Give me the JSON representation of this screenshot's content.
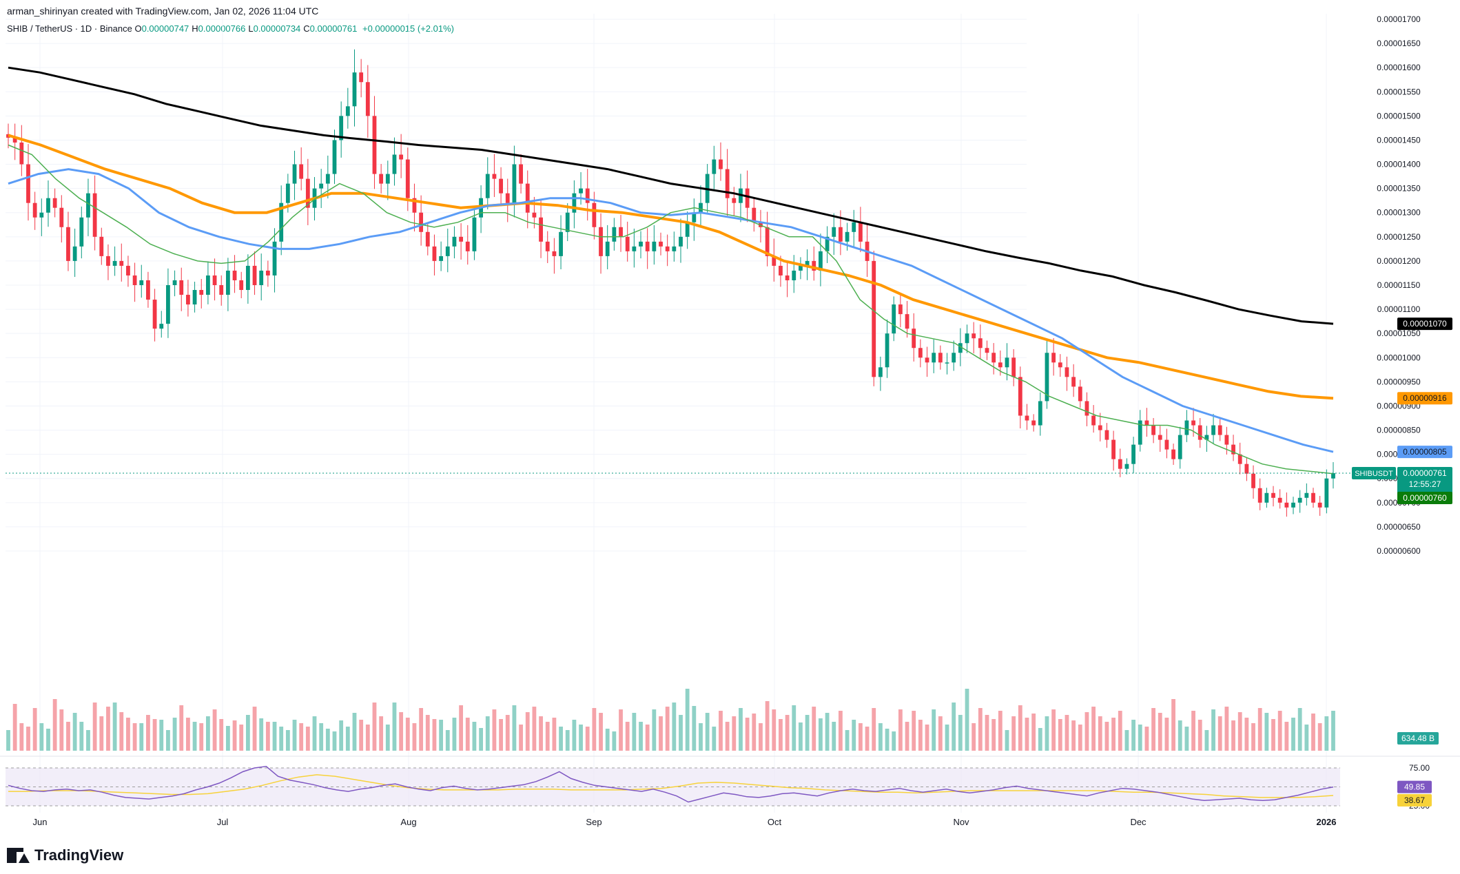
{
  "header": {
    "creator_note": "arman_shirinyan created with TradingView.com, Jan 02, 2026 11:04 UTC",
    "symbol": "SHIB / TetherUS · 1D · Binance",
    "ohlc": [
      {
        "k": "O",
        "v": "0.00000747"
      },
      {
        "k": "H",
        "v": "0.00000766"
      },
      {
        "k": "L",
        "v": "0.00000734"
      },
      {
        "k": "C",
        "v": "0.00000761"
      }
    ],
    "change": "+0.00000015 (+2.01%)"
  },
  "footer": {
    "brand": "TradingView",
    "logo_icon": "tradingview-logo-icon"
  },
  "colors": {
    "up": "#089981",
    "down": "#f23645",
    "vol_up": "#8fd1c6",
    "vol_down": "#f5a3a9",
    "ma200": "#000000",
    "ma100": "#ff9800",
    "ma50": "#5b9cf6",
    "ma20": "#4caf50",
    "rsi": "#7e57c2",
    "rsi_ma": "#f7d23a"
  },
  "chart_data": {
    "type": "candlestick",
    "y_ticks": [
      "0.00001700",
      "0.00001650",
      "0.00001600",
      "0.00001550",
      "0.00001500",
      "0.00001450",
      "0.00001400",
      "0.00001350",
      "0.00001300",
      "0.00001250",
      "0.00001200",
      "0.00001150",
      "0.00001100",
      "0.00001050",
      "0.00001000",
      "0.00000950",
      "0.00000900",
      "0.00000850",
      "0.00000800",
      "0.00000750",
      "0.00000700",
      "0.00000650",
      "0.00000600"
    ],
    "ylim": [
      5.95e-06,
      1.705e-05
    ],
    "x_labels": [
      "Jun",
      "Jul",
      "Aug",
      "Sep",
      "Oct",
      "Nov",
      "Dec",
      "2026"
    ],
    "ma_labels": [
      {
        "value": "0.00001070",
        "bg": "#000000",
        "fg": "#ffffff"
      },
      {
        "value": "0.00000916",
        "bg": "#ff9800",
        "fg": "#131722"
      },
      {
        "value": "0.00000805",
        "bg": "#5b9cf6",
        "fg": "#131722"
      }
    ],
    "last_price": {
      "label": "SHIBUSDT",
      "value": "0.00000761",
      "countdown": "12:55:27",
      "ma20": "0.00000760"
    },
    "volume_label": "634.48 B",
    "rsi": {
      "levels": [
        "75.00",
        "25.00"
      ],
      "value": "49.85",
      "ma_value": "38.67"
    },
    "closes": [
      1.455e-05,
      1.445e-05,
      1.4e-05,
      1.32e-05,
      1.29e-05,
      1.3e-05,
      1.33e-05,
      1.31e-05,
      1.27e-05,
      1.2e-05,
      1.23e-05,
      1.29e-05,
      1.34e-05,
      1.25e-05,
      1.21e-05,
      1.19e-05,
      1.2e-05,
      1.19e-05,
      1.17e-05,
      1.15e-05,
      1.16e-05,
      1.12e-05,
      1.06e-05,
      1.07e-05,
      1.15e-05,
      1.16e-05,
      1.13e-05,
      1.11e-05,
      1.14e-05,
      1.13e-05,
      1.17e-05,
      1.15e-05,
      1.13e-05,
      1.18e-05,
      1.16e-05,
      1.14e-05,
      1.19e-05,
      1.15e-05,
      1.18e-05,
      1.17e-05,
      1.24e-05,
      1.32e-05,
      1.36e-05,
      1.4e-05,
      1.37e-05,
      1.31e-05,
      1.35e-05,
      1.36e-05,
      1.38e-05,
      1.45e-05,
      1.5e-05,
      1.52e-05,
      1.59e-05,
      1.57e-05,
      1.5e-05,
      1.38e-05,
      1.36e-05,
      1.38e-05,
      1.42e-05,
      1.41e-05,
      1.33e-05,
      1.3e-05,
      1.26e-05,
      1.23e-05,
      1.2e-05,
      1.21e-05,
      1.23e-05,
      1.25e-05,
      1.24e-05,
      1.22e-05,
      1.29e-05,
      1.33e-05,
      1.38e-05,
      1.37e-05,
      1.34e-05,
      1.32e-05,
      1.4e-05,
      1.36e-05,
      1.3e-05,
      1.29e-05,
      1.24e-05,
      1.22e-05,
      1.21e-05,
      1.26e-05,
      1.3e-05,
      1.34e-05,
      1.35e-05,
      1.32e-05,
      1.27e-05,
      1.21e-05,
      1.24e-05,
      1.27e-05,
      1.25e-05,
      1.22e-05,
      1.23e-05,
      1.24e-05,
      1.22e-05,
      1.24e-05,
      1.23e-05,
      1.22e-05,
      1.23e-05,
      1.25e-05,
      1.28e-05,
      1.3e-05,
      1.32e-05,
      1.38e-05,
      1.41e-05,
      1.39e-05,
      1.33e-05,
      1.32e-05,
      1.35e-05,
      1.31e-05,
      1.28e-05,
      1.27e-05,
      1.21e-05,
      1.19e-05,
      1.17e-05,
      1.16e-05,
      1.18e-05,
      1.19e-05,
      1.2e-05,
      1.18e-05,
      1.22e-05,
      1.25e-05,
      1.27e-05,
      1.24e-05,
      1.26e-05,
      1.28e-05,
      1.24e-05,
      1.2e-05,
      9.6e-06,
      9.8e-06,
      1.05e-05,
      1.11e-05,
      1.09e-05,
      1.06e-05,
      1.02e-05,
      1e-05,
      9.9e-06,
      1.01e-05,
      9.9e-06,
      9.9e-06,
      1.01e-05,
      1.03e-05,
      1.05e-05,
      1.04e-05,
      1.02e-05,
      1.01e-05,
      9.9e-06,
      9.8e-06,
      1e-05,
      9.6e-06,
      8.8e-06,
      8.7e-06,
      8.6e-06,
      9.1e-06,
      1.01e-05,
      9.9e-06,
      9.8e-06,
      9.6e-06,
      9.4e-06,
      9.1e-06,
      8.8e-06,
      8.6e-06,
      8.5e-06,
      8.3e-06,
      7.9e-06,
      7.7e-06,
      7.8e-06,
      8.2e-06,
      8.7e-06,
      8.6e-06,
      8.4e-06,
      8.3e-06,
      8.1e-06,
      7.9e-06,
      8.4e-06,
      8.7e-06,
      8.6e-06,
      8.3e-06,
      8.4e-06,
      8.6e-06,
      8.4e-06,
      8.2e-06,
      8e-06,
      7.8e-06,
      7.6e-06,
      7.3e-06,
      7e-06,
      7.2e-06,
      7.1e-06,
      7e-06,
      6.9e-06,
      7e-06,
      7.1e-06,
      7.2e-06,
      7e-06,
      6.9e-06,
      7.5e-06,
      7.61e-06
    ],
    "ma200": [
      1.6e-05,
      1.59e-05,
      1.575e-05,
      1.56e-05,
      1.545e-05,
      1.525e-05,
      1.51e-05,
      1.495e-05,
      1.48e-05,
      1.47e-05,
      1.46e-05,
      1.453e-05,
      1.447e-05,
      1.44e-05,
      1.435e-05,
      1.43e-05,
      1.42e-05,
      1.41e-05,
      1.4e-05,
      1.39e-05,
      1.375e-05,
      1.36e-05,
      1.35e-05,
      1.34e-05,
      1.325e-05,
      1.31e-05,
      1.295e-05,
      1.28e-05,
      1.265e-05,
      1.25e-05,
      1.235e-05,
      1.22e-05,
      1.207e-05,
      1.195e-05,
      1.18e-05,
      1.168e-05,
      1.15e-05,
      1.135e-05,
      1.118e-05,
      1.1e-05,
      1.087e-05,
      1.075e-05,
      1.07e-05
    ],
    "ma100": [
      1.46e-05,
      1.44e-05,
      1.415e-05,
      1.39e-05,
      1.37e-05,
      1.35e-05,
      1.32e-05,
      1.3e-05,
      1.3e-05,
      1.32e-05,
      1.34e-05,
      1.34e-05,
      1.33e-05,
      1.32e-05,
      1.31e-05,
      1.315e-05,
      1.32e-05,
      1.315e-05,
      1.305e-05,
      1.3e-05,
      1.29e-05,
      1.28e-05,
      1.26e-05,
      1.23e-05,
      1.2e-05,
      1.185e-05,
      1.17e-05,
      1.15e-05,
      1.12e-05,
      1.1e-05,
      1.08e-05,
      1.06e-05,
      1.04e-05,
      1.02e-05,
      1e-05,
      9.9e-06,
      9.75e-06,
      9.6e-06,
      9.45e-06,
      9.3e-06,
      9.2e-06,
      9.16e-06
    ],
    "ma50": [
      1.36e-05,
      1.38e-05,
      1.39e-05,
      1.38e-05,
      1.35e-05,
      1.3e-05,
      1.27e-05,
      1.25e-05,
      1.235e-05,
      1.225e-05,
      1.225e-05,
      1.235e-05,
      1.25e-05,
      1.26e-05,
      1.28e-05,
      1.3e-05,
      1.315e-05,
      1.32e-05,
      1.33e-05,
      1.33e-05,
      1.32e-05,
      1.3e-05,
      1.295e-05,
      1.3e-05,
      1.29e-05,
      1.28e-05,
      1.27e-05,
      1.25e-05,
      1.23e-05,
      1.21e-05,
      1.19e-05,
      1.16e-05,
      1.13e-05,
      1.1e-05,
      1.07e-05,
      1.04e-05,
      1e-05,
      9.6e-06,
      9.3e-06,
      9e-06,
      8.8e-06,
      8.6e-06,
      8.4e-06,
      8.2e-06,
      8.05e-06
    ],
    "ma20": [
      1.44e-05,
      1.42e-05,
      1.37e-05,
      1.33e-05,
      1.3e-05,
      1.27e-05,
      1.235e-05,
      1.215e-05,
      1.2e-05,
      1.195e-05,
      1.2e-05,
      1.24e-05,
      1.29e-05,
      1.33e-05,
      1.36e-05,
      1.34e-05,
      1.3e-05,
      1.28e-05,
      1.27e-05,
      1.28e-05,
      1.3e-05,
      1.3e-05,
      1.28e-05,
      1.27e-05,
      1.26e-05,
      1.25e-05,
      1.25e-05,
      1.27e-05,
      1.3e-05,
      1.31e-05,
      1.3e-05,
      1.29e-05,
      1.27e-05,
      1.25e-05,
      1.25e-05,
      1.2e-05,
      1.12e-05,
      1.08e-05,
      1.05e-05,
      1.04e-05,
      1.03e-05,
      1e-05,
      9.7e-06,
      9.5e-06,
      9.2e-06,
      9e-06,
      8.8e-06,
      8.7e-06,
      8.6e-06,
      8.6e-06,
      8.5e-06,
      8.2e-06,
      8e-06,
      7.8e-06,
      7.7e-06,
      7.65e-06,
      7.6e-06
    ],
    "rsi_series": [
      52,
      48,
      45,
      44,
      46,
      47,
      45,
      46,
      43,
      39,
      36,
      35,
      34,
      36,
      38,
      41,
      46,
      50,
      55,
      62,
      70,
      75,
      77,
      64,
      59,
      56,
      53,
      49,
      46,
      44,
      47,
      49,
      52,
      54,
      50,
      47,
      45,
      49,
      51,
      48,
      46,
      47,
      49,
      51,
      53,
      57,
      63,
      70,
      61,
      56,
      52,
      50,
      48,
      46,
      44,
      47,
      43,
      38,
      30,
      34,
      38,
      42,
      40,
      37,
      36,
      38,
      41,
      42,
      40,
      38,
      42,
      45,
      47,
      45,
      44,
      46,
      48,
      45,
      43,
      45,
      47,
      44,
      42,
      44,
      46,
      49,
      51,
      48,
      46,
      44,
      42,
      40,
      38,
      42,
      45,
      48,
      47,
      45,
      43,
      40,
      37,
      34,
      32,
      33,
      34,
      35,
      33,
      32,
      33,
      36,
      39,
      43,
      47,
      49.85
    ],
    "rsi_ma_series": [
      44,
      44,
      45,
      45,
      45,
      44,
      43,
      42,
      41,
      40,
      40,
      41,
      44,
      47,
      52,
      58,
      63,
      66,
      64,
      60,
      56,
      52,
      49,
      47,
      46,
      46,
      46,
      46,
      47,
      47,
      47,
      46,
      46,
      46,
      46,
      47,
      48,
      51,
      55,
      56,
      55,
      53,
      51,
      49,
      48,
      46,
      45,
      44,
      43,
      43,
      42,
      43,
      44,
      45,
      45,
      45,
      45,
      45,
      45,
      45,
      45,
      44,
      43,
      43,
      42,
      41,
      40,
      38,
      37,
      36,
      36,
      36,
      37,
      38.67
    ],
    "volume_up": [
      30,
      45,
      38,
      25,
      50,
      40,
      32,
      28,
      44,
      35,
      55,
      42,
      30,
      60,
      48,
      38,
      70,
      52,
      90,
      65,
      40,
      55,
      35,
      45,
      30,
      48,
      62,
      38,
      42,
      33,
      50,
      58,
      45,
      36,
      66,
      41,
      52,
      39,
      47,
      55,
      42,
      35
    ],
    "volume_down": [
      52,
      68,
      40,
      35,
      62,
      55,
      48,
      75,
      60,
      42,
      58,
      45,
      38,
      70,
      50,
      64,
      44,
      56,
      48,
      40,
      62,
      52,
      46,
      58,
      42,
      50,
      66,
      48,
      54,
      40,
      72,
      60,
      46,
      52,
      44,
      38,
      56,
      64,
      50,
      42,
      48,
      58
    ]
  }
}
